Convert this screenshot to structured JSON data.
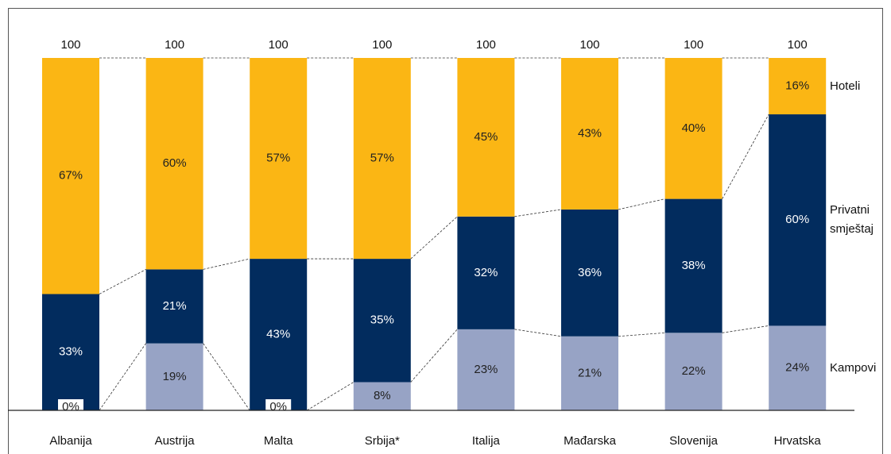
{
  "chart_data": {
    "type": "stacked_bar",
    "categories": [
      "Albanija",
      "Austrija",
      "Malta",
      "Srbija*",
      "Italija",
      "Mađarska",
      "Slovenija",
      "Hrvatska"
    ],
    "totals": [
      100,
      100,
      100,
      100,
      100,
      100,
      100,
      100
    ],
    "series": [
      {
        "name": "Kampovi",
        "color": "#97a3c5",
        "values": [
          0,
          19,
          0,
          8,
          23,
          21,
          22,
          24
        ],
        "value_labels": [
          "0%",
          "19%",
          "0%",
          "8%",
          "23%",
          "21%",
          "22%",
          "24%"
        ]
      },
      {
        "name": "Privatni smještaj",
        "color": "#022c5e",
        "values": [
          33,
          21,
          43,
          35,
          32,
          36,
          38,
          60
        ],
        "value_labels": [
          "33%",
          "21%",
          "43%",
          "35%",
          "32%",
          "36%",
          "38%",
          "60%"
        ]
      },
      {
        "name": "Hoteli",
        "color": "#fbb614",
        "values": [
          67,
          60,
          57,
          57,
          45,
          43,
          40,
          16
        ],
        "value_labels": [
          "67%",
          "60%",
          "57%",
          "57%",
          "45%",
          "43%",
          "40%",
          "16%"
        ]
      }
    ],
    "ylim": [
      0,
      100
    ]
  }
}
